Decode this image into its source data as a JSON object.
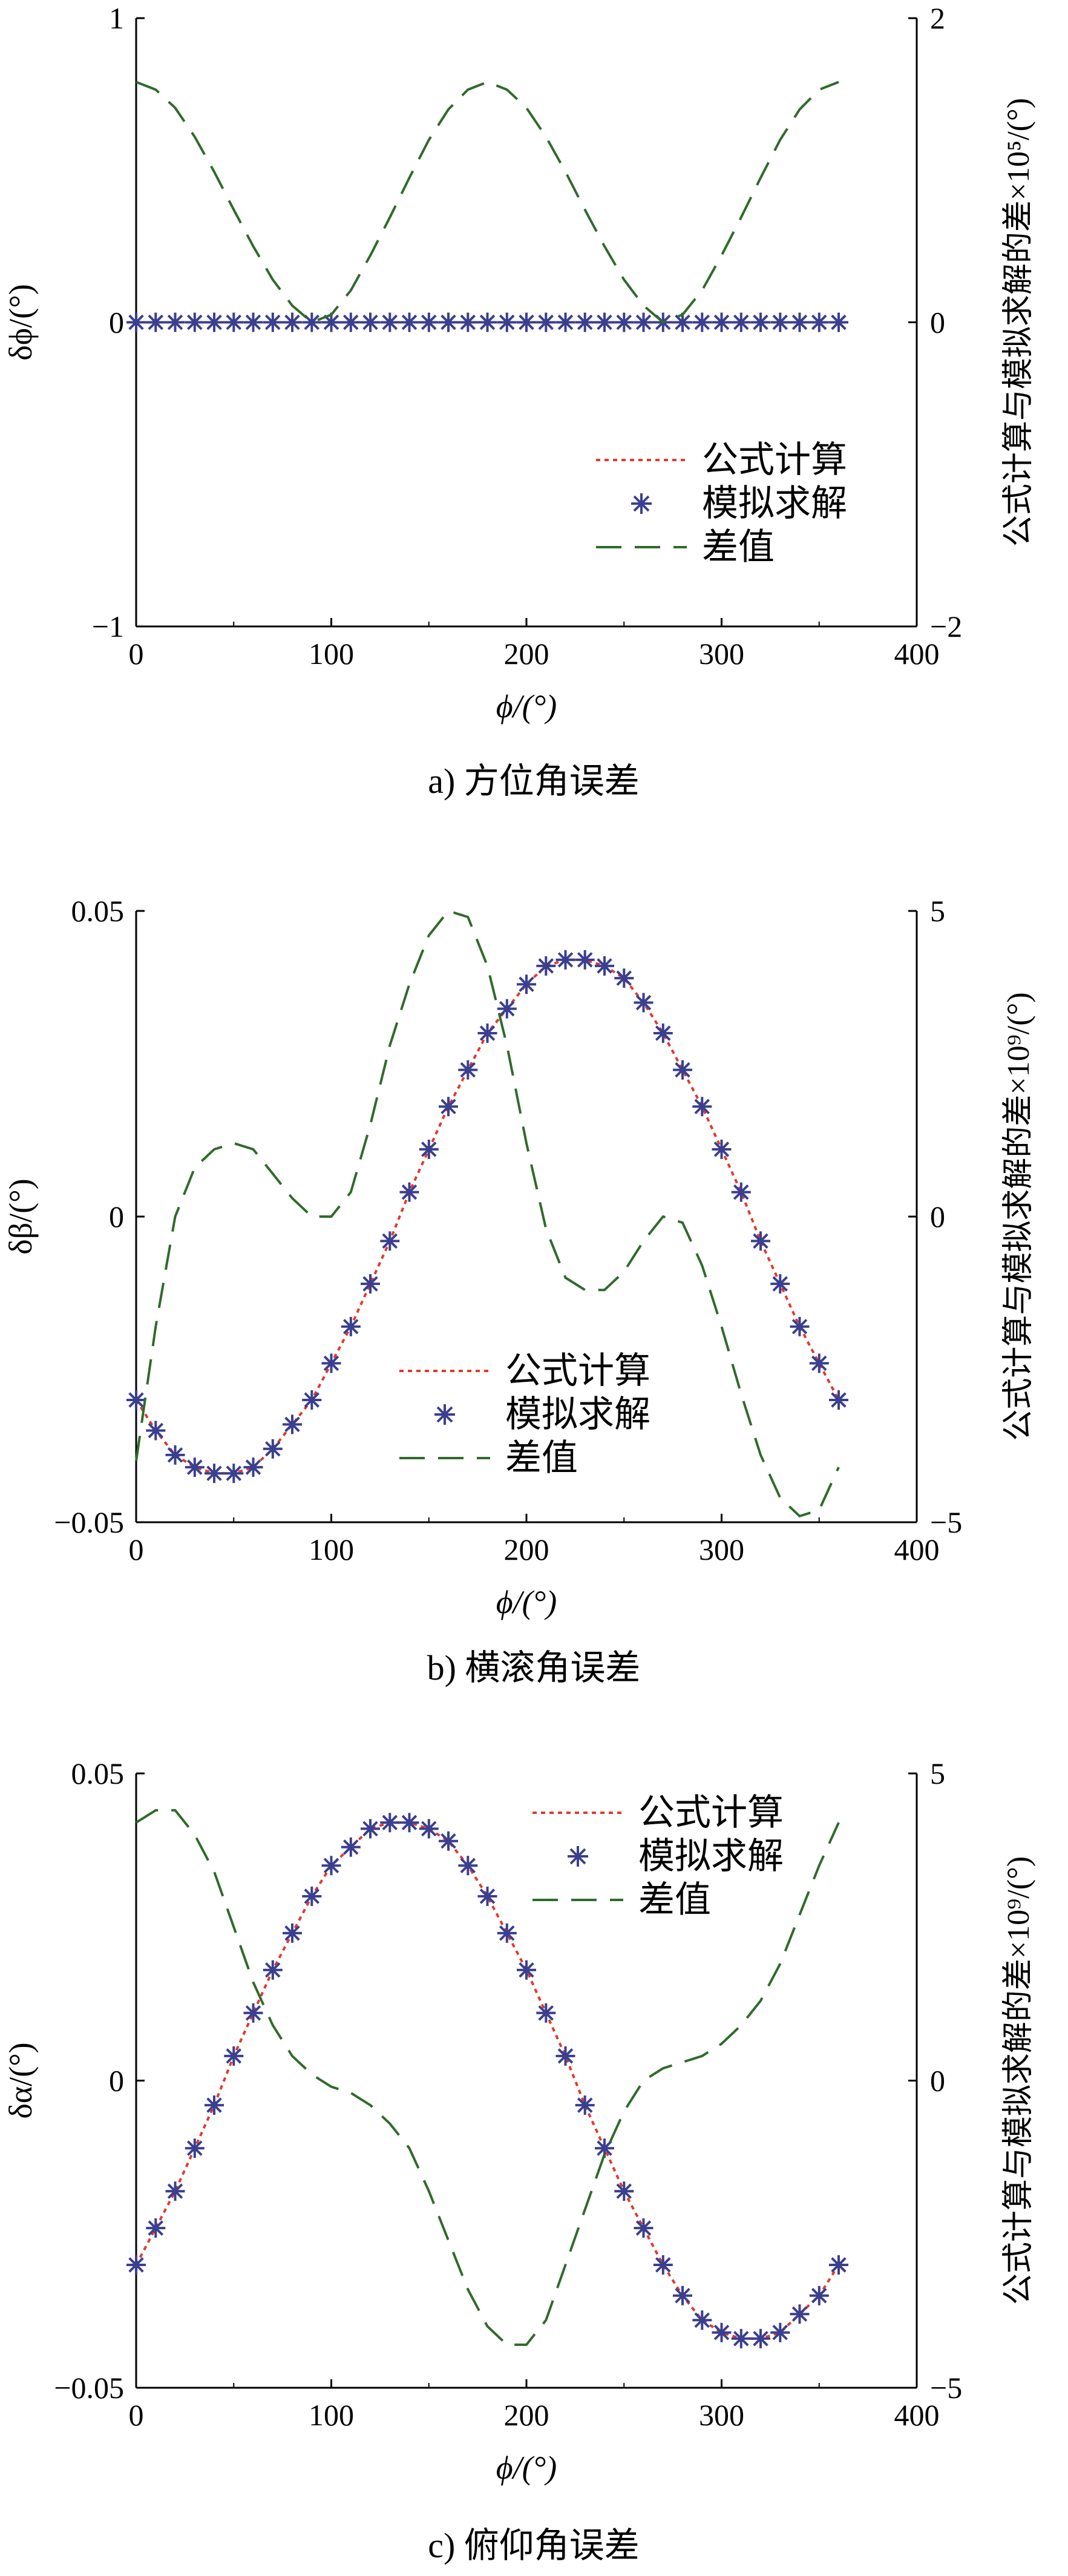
{
  "chart_data": [
    {
      "type": "line",
      "caption": "a) 方位角误差",
      "xlabel": "ϕ/(°)",
      "ylabel_left": "δϕ/(°)",
      "ylabel_right": "公式计算与模拟求解的差×10⁵/(°)",
      "xlim": [
        0,
        400
      ],
      "ylim_left": [
        -1,
        1
      ],
      "ylim_right": [
        -2,
        2
      ],
      "x_ticks": [
        "0",
        "100",
        "200",
        "300",
        "400"
      ],
      "y_left_ticks": [
        "−1",
        "0",
        "1"
      ],
      "y_right_ticks": [
        "−2",
        "0",
        "2"
      ],
      "legend_position": "lower-right",
      "grid": false,
      "series": [
        {
          "name": "公式计算",
          "axis": "left",
          "style": "red-dotted",
          "x": [
            0,
            360
          ],
          "y": [
            0,
            0
          ]
        },
        {
          "name": "模拟求解",
          "axis": "left",
          "style": "blue-star",
          "x": [
            0,
            10,
            20,
            30,
            40,
            50,
            60,
            70,
            80,
            90,
            100,
            110,
            120,
            130,
            140,
            150,
            160,
            170,
            180,
            190,
            200,
            210,
            220,
            230,
            240,
            250,
            260,
            270,
            280,
            290,
            300,
            310,
            320,
            330,
            340,
            350,
            360
          ],
          "y": [
            0,
            0,
            0,
            0,
            0,
            0,
            0,
            0,
            0,
            0,
            0,
            0,
            0,
            0,
            0,
            0,
            0,
            0,
            0,
            0,
            0,
            0,
            0,
            0,
            0,
            0,
            0,
            0,
            0,
            0,
            0,
            0,
            0,
            0,
            0,
            0,
            0
          ]
        },
        {
          "name": "差值",
          "axis": "right",
          "style": "green-dashed",
          "x": [
            0,
            10,
            20,
            30,
            40,
            50,
            60,
            70,
            80,
            90,
            100,
            110,
            120,
            130,
            140,
            150,
            160,
            170,
            180,
            190,
            200,
            210,
            220,
            230,
            240,
            250,
            260,
            270,
            280,
            290,
            300,
            310,
            320,
            330,
            340,
            350,
            360
          ],
          "y": [
            1.58,
            1.53,
            1.41,
            1.22,
            0.99,
            0.74,
            0.5,
            0.28,
            0.11,
            0.0,
            0.05,
            0.21,
            0.44,
            0.69,
            0.95,
            1.2,
            1.4,
            1.53,
            1.58,
            1.53,
            1.41,
            1.22,
            0.99,
            0.74,
            0.5,
            0.28,
            0.11,
            0.0,
            0.05,
            0.21,
            0.44,
            0.69,
            0.95,
            1.2,
            1.4,
            1.53,
            1.58
          ]
        }
      ]
    },
    {
      "type": "line",
      "caption": "b) 横滚角误差",
      "xlabel": "ϕ/(°)",
      "ylabel_left": "δβ/(°)",
      "ylabel_right": "公式计算与模拟求解的差×10⁹/(°)",
      "xlim": [
        0,
        400
      ],
      "ylim_left": [
        -0.05,
        0.05
      ],
      "ylim_right": [
        -5,
        5
      ],
      "x_ticks": [
        "0",
        "100",
        "200",
        "300",
        "400"
      ],
      "y_left_ticks": [
        "−0.05",
        "0",
        "0.05"
      ],
      "y_right_ticks": [
        "−5",
        "0",
        "5"
      ],
      "legend_position": "lower-center",
      "grid": false,
      "series": [
        {
          "name": "公式计算",
          "axis": "left",
          "style": "red-dotted",
          "x": [
            0,
            10,
            20,
            30,
            40,
            50,
            60,
            70,
            80,
            90,
            100,
            110,
            120,
            130,
            140,
            150,
            160,
            170,
            180,
            190,
            200,
            210,
            220,
            230,
            240,
            250,
            260,
            270,
            280,
            290,
            300,
            310,
            320,
            330,
            340,
            350,
            360
          ],
          "y": [
            -0.03,
            -0.035,
            -0.039,
            -0.041,
            -0.042,
            -0.042,
            -0.041,
            -0.038,
            -0.034,
            -0.03,
            -0.024,
            -0.018,
            -0.011,
            -0.004,
            0.004,
            0.011,
            0.018,
            0.024,
            0.03,
            0.034,
            0.038,
            0.041,
            0.042,
            0.042,
            0.041,
            0.039,
            0.035,
            0.03,
            0.024,
            0.018,
            0.011,
            0.004,
            -0.004,
            -0.011,
            -0.018,
            -0.024,
            -0.03
          ]
        },
        {
          "name": "模拟求解",
          "axis": "left",
          "style": "blue-star",
          "x": [
            0,
            10,
            20,
            30,
            40,
            50,
            60,
            70,
            80,
            90,
            100,
            110,
            120,
            130,
            140,
            150,
            160,
            170,
            180,
            190,
            200,
            210,
            220,
            230,
            240,
            250,
            260,
            270,
            280,
            290,
            300,
            310,
            320,
            330,
            340,
            350,
            360
          ],
          "y": [
            -0.03,
            -0.035,
            -0.039,
            -0.041,
            -0.042,
            -0.042,
            -0.041,
            -0.038,
            -0.034,
            -0.03,
            -0.024,
            -0.018,
            -0.011,
            -0.004,
            0.004,
            0.011,
            0.018,
            0.024,
            0.03,
            0.034,
            0.038,
            0.041,
            0.042,
            0.042,
            0.041,
            0.039,
            0.035,
            0.03,
            0.024,
            0.018,
            0.011,
            0.004,
            -0.004,
            -0.011,
            -0.018,
            -0.024,
            -0.03
          ]
        },
        {
          "name": "差值",
          "axis": "right",
          "style": "green-dashed",
          "x": [
            0,
            10,
            20,
            30,
            40,
            50,
            60,
            70,
            80,
            90,
            100,
            110,
            120,
            130,
            140,
            150,
            160,
            170,
            180,
            190,
            200,
            210,
            220,
            230,
            240,
            250,
            260,
            270,
            280,
            290,
            300,
            310,
            320,
            330,
            340,
            350,
            360
          ],
          "y": [
            -4.0,
            -1.8,
            0.0,
            0.8,
            1.1,
            1.2,
            1.1,
            0.7,
            0.3,
            0.0,
            0.0,
            0.4,
            1.5,
            2.8,
            3.8,
            4.6,
            5.0,
            4.9,
            4.1,
            2.8,
            1.2,
            -0.2,
            -1.0,
            -1.2,
            -1.2,
            -0.9,
            -0.4,
            0.0,
            -0.1,
            -0.8,
            -1.8,
            -2.9,
            -3.9,
            -4.6,
            -4.9,
            -4.8,
            -4.1
          ]
        }
      ]
    },
    {
      "type": "line",
      "caption": "c) 俯仰角误差",
      "xlabel": "ϕ/(°)",
      "ylabel_left": "δα/(°)",
      "ylabel_right": "公式计算与模拟求解的差×10⁹/(°)",
      "xlim": [
        0,
        400
      ],
      "ylim_left": [
        -0.05,
        0.05
      ],
      "ylim_right": [
        -5,
        5
      ],
      "x_ticks": [
        "0",
        "100",
        "200",
        "300",
        "400"
      ],
      "y_left_ticks": [
        "−0.05",
        "0",
        "0.05"
      ],
      "y_right_ticks": [
        "−5",
        "0",
        "5"
      ],
      "legend_position": "upper-right",
      "grid": false,
      "series": [
        {
          "name": "公式计算",
          "axis": "left",
          "style": "red-dotted",
          "x": [
            0,
            10,
            20,
            30,
            40,
            50,
            60,
            70,
            80,
            90,
            100,
            110,
            120,
            130,
            140,
            150,
            160,
            170,
            180,
            190,
            200,
            210,
            220,
            230,
            240,
            250,
            260,
            270,
            280,
            290,
            300,
            310,
            320,
            330,
            340,
            350,
            360
          ],
          "y": [
            -0.03,
            -0.024,
            -0.018,
            -0.011,
            -0.004,
            0.004,
            0.011,
            0.018,
            0.024,
            0.03,
            0.035,
            0.038,
            0.041,
            0.042,
            0.042,
            0.041,
            0.039,
            0.035,
            0.03,
            0.024,
            0.018,
            0.011,
            0.004,
            -0.004,
            -0.011,
            -0.018,
            -0.024,
            -0.03,
            -0.035,
            -0.039,
            -0.041,
            -0.042,
            -0.042,
            -0.041,
            -0.038,
            -0.035,
            -0.03
          ]
        },
        {
          "name": "模拟求解",
          "axis": "left",
          "style": "blue-star",
          "x": [
            0,
            10,
            20,
            30,
            40,
            50,
            60,
            70,
            80,
            90,
            100,
            110,
            120,
            130,
            140,
            150,
            160,
            170,
            180,
            190,
            200,
            210,
            220,
            230,
            240,
            250,
            260,
            270,
            280,
            290,
            300,
            310,
            320,
            330,
            340,
            350,
            360
          ],
          "y": [
            -0.03,
            -0.024,
            -0.018,
            -0.011,
            -0.004,
            0.004,
            0.011,
            0.018,
            0.024,
            0.03,
            0.035,
            0.038,
            0.041,
            0.042,
            0.042,
            0.041,
            0.039,
            0.035,
            0.03,
            0.024,
            0.018,
            0.011,
            0.004,
            -0.004,
            -0.011,
            -0.018,
            -0.024,
            -0.03,
            -0.035,
            -0.039,
            -0.041,
            -0.042,
            -0.042,
            -0.041,
            -0.038,
            -0.035,
            -0.03
          ]
        },
        {
          "name": "差值",
          "axis": "right",
          "style": "green-dashed",
          "x": [
            0,
            10,
            20,
            30,
            40,
            50,
            60,
            70,
            80,
            90,
            100,
            110,
            120,
            130,
            140,
            150,
            160,
            170,
            180,
            190,
            200,
            210,
            220,
            230,
            240,
            250,
            260,
            270,
            280,
            290,
            300,
            310,
            320,
            330,
            340,
            350,
            360
          ],
          "y": [
            4.2,
            4.4,
            4.4,
            4.0,
            3.4,
            2.5,
            1.6,
            0.9,
            0.4,
            0.1,
            -0.1,
            -0.2,
            -0.4,
            -0.7,
            -1.1,
            -1.8,
            -2.6,
            -3.4,
            -4.0,
            -4.3,
            -4.3,
            -3.9,
            -3.0,
            -2.1,
            -1.2,
            -0.5,
            0.0,
            0.2,
            0.3,
            0.4,
            0.6,
            0.9,
            1.3,
            1.9,
            2.7,
            3.5,
            4.2
          ]
        }
      ]
    }
  ]
}
